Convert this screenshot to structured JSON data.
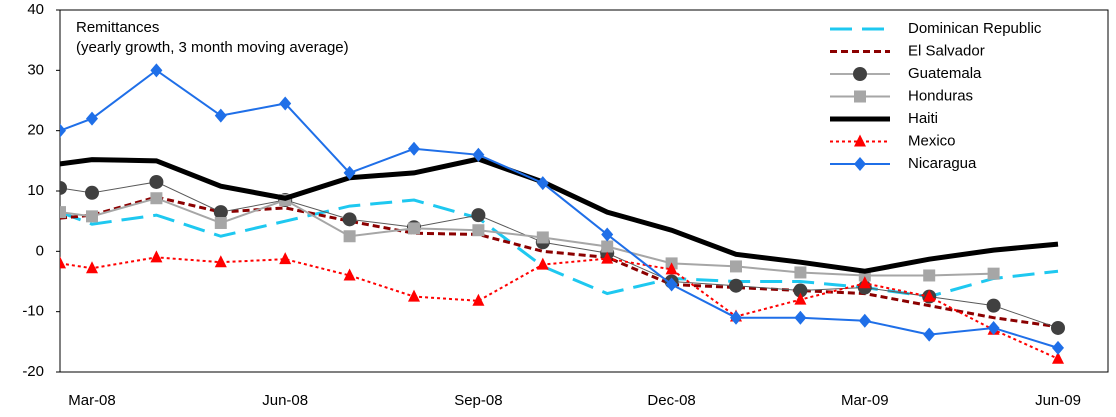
{
  "chart_data": {
    "type": "line",
    "title": "Remittances",
    "subtitle": "(yearly growth, 3 month moving average)",
    "categories": [
      null,
      "Mar-08",
      null,
      null,
      "Jun-08",
      null,
      null,
      "Sep-08",
      null,
      null,
      "Dec-08",
      null,
      null,
      "Mar-09",
      null,
      null,
      "Jun-09"
    ],
    "ylim": [
      -20,
      40
    ],
    "yticks": [
      -20,
      -10,
      0,
      10,
      20,
      30,
      40
    ],
    "grid": false,
    "legend": "top-right",
    "series": [
      {
        "name": "Dominican Republic",
        "color": "#1ec8f0",
        "dash": "long",
        "marker": "none",
        "width": 3,
        "values": [
          6.5,
          4.5,
          6,
          2.5,
          5,
          7.5,
          8.5,
          5.5,
          -2.5,
          -7,
          -4.5,
          -5,
          -5,
          -6,
          -7.5,
          -4.5,
          -3.3
        ]
      },
      {
        "name": "El Salvador",
        "color": "#8b0000",
        "dash": "short",
        "marker": "none",
        "width": 3,
        "values": [
          5.5,
          6,
          9,
          6.5,
          7.2,
          5,
          3,
          2.8,
          0,
          -1,
          -5.5,
          -6,
          -6.5,
          -7,
          -9,
          -11,
          -12.5
        ]
      },
      {
        "name": "Guatemala",
        "color": "#595959",
        "dash": "solid",
        "marker": "circle",
        "width": 1,
        "values": [
          10.5,
          9.7,
          11.5,
          6.5,
          8.5,
          5.3,
          4,
          6,
          1.5,
          -0.3,
          -5,
          -5.7,
          -6.5,
          -6,
          -7.5,
          -9,
          -12.7
        ]
      },
      {
        "name": "Honduras",
        "color": "#a6a6a6",
        "dash": "solid",
        "marker": "square",
        "width": 2,
        "values": [
          6.5,
          5.8,
          8.8,
          4.7,
          8.5,
          2.5,
          3.8,
          3.5,
          2.3,
          0.8,
          -2,
          -2.5,
          -3.5,
          -4,
          -4,
          -3.7,
          null
        ]
      },
      {
        "name": "Haiti",
        "color": "#000000",
        "dash": "solid",
        "marker": "none",
        "width": 5,
        "values": [
          14.5,
          15.2,
          15,
          10.8,
          8.8,
          12.2,
          13,
          15.3,
          11.5,
          6.5,
          3.5,
          -0.5,
          -1.8,
          -3.3,
          -1.3,
          0.2,
          1.2
        ]
      },
      {
        "name": "Mexico",
        "color": "#ff0000",
        "dash": "dot",
        "marker": "triangle",
        "width": 2,
        "values": [
          -2,
          -2.8,
          -1,
          -1.8,
          -1.3,
          -4,
          -7.5,
          -8.2,
          -2.2,
          -1.2,
          -3,
          -10.8,
          -8,
          -5.3,
          -7.5,
          -13,
          -17.8
        ]
      },
      {
        "name": "Nicaragua",
        "color": "#1f6fe8",
        "dash": "solid",
        "marker": "diamond",
        "width": 2,
        "values": [
          20,
          22,
          30,
          22.5,
          24.5,
          13,
          17,
          16,
          11.3,
          2.8,
          -5.5,
          -11,
          -11,
          -11.5,
          -13.8,
          -12.7,
          -16
        ]
      }
    ]
  }
}
